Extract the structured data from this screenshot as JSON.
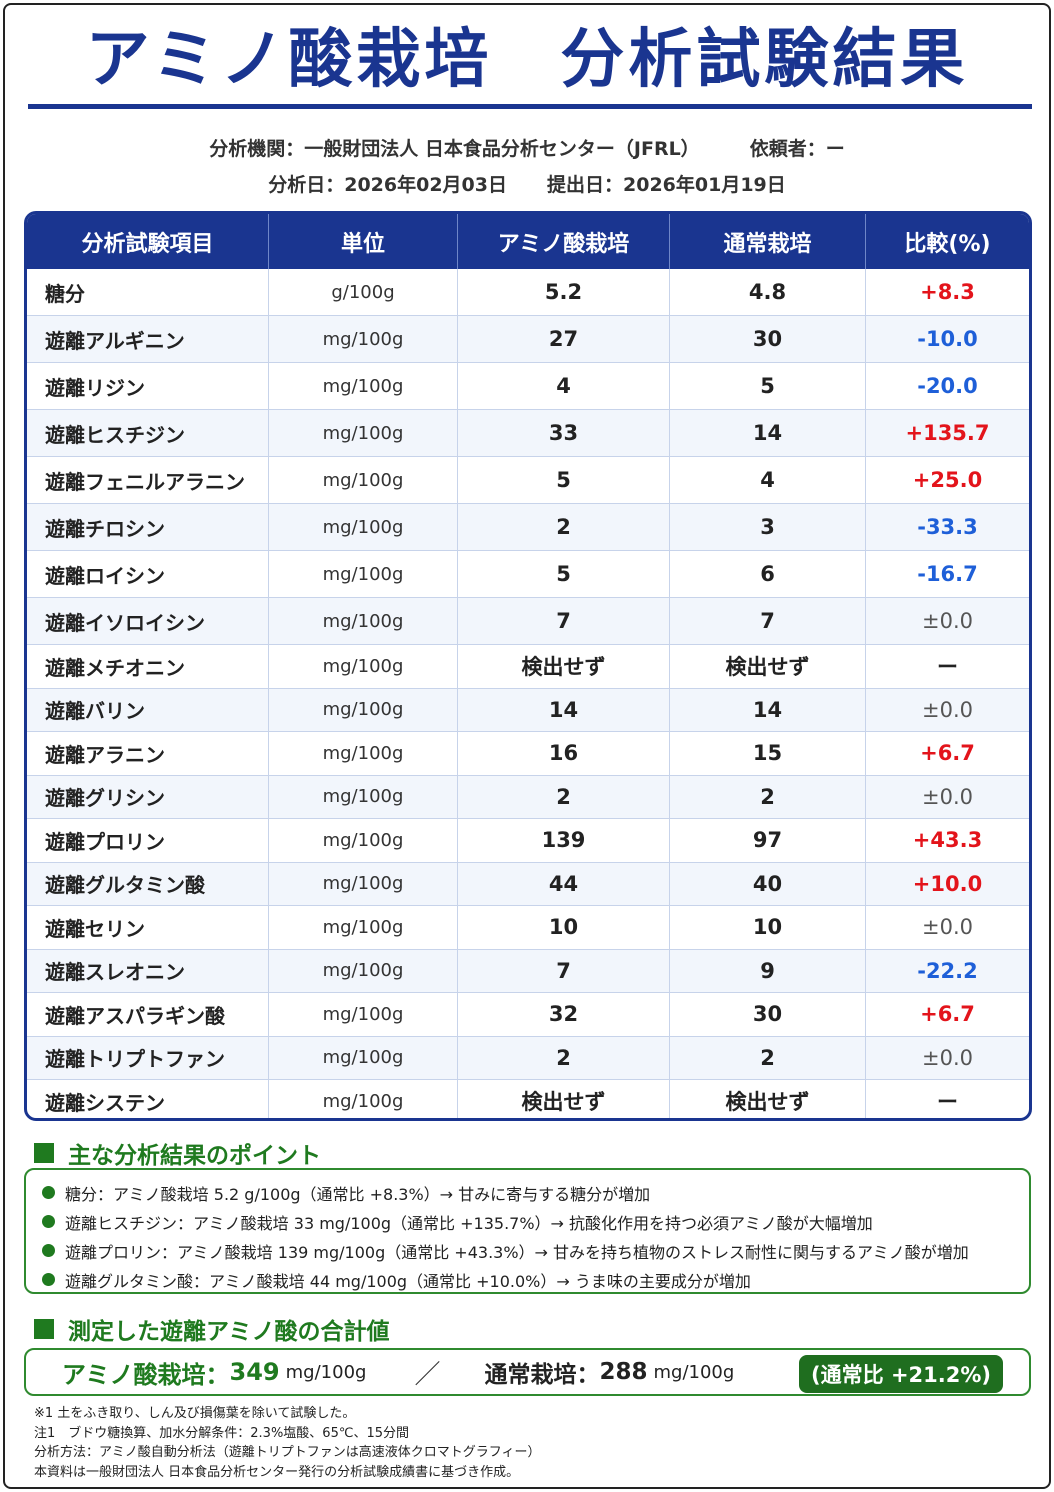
{
  "title": "アミノ酸栽培　分析試験結果",
  "meta": {
    "org": "分析機関：一般財団法人 日本食品分析センター（JFRL）",
    "requester": "依頼者：ー",
    "analysis_date": "分析日：2026年02月03日",
    "submit_date": "提出日：2026年01月19日"
  },
  "table": {
    "headers": [
      "分析試験項目",
      "単位",
      "アミノ酸栽培",
      "通常栽培",
      "比較(%)"
    ],
    "rows": [
      {
        "name": "糖分",
        "unit": "g/100g",
        "amino": "5.2",
        "normal": "4.8",
        "cmp": "+8.3",
        "tone": "pos"
      },
      {
        "name": "遊離アルギニン",
        "unit": "mg/100g",
        "amino": "27",
        "normal": "30",
        "cmp": "-10.0",
        "tone": "neg"
      },
      {
        "name": "遊離リジン",
        "unit": "mg/100g",
        "amino": "4",
        "normal": "5",
        "cmp": "-20.0",
        "tone": "neg"
      },
      {
        "name": "遊離ヒスチジン",
        "unit": "mg/100g",
        "amino": "33",
        "normal": "14",
        "cmp": "+135.7",
        "tone": "pos"
      },
      {
        "name": "遊離フェニルアラニン",
        "unit": "mg/100g",
        "amino": "5",
        "normal": "4",
        "cmp": "+25.0",
        "tone": "pos"
      },
      {
        "name": "遊離チロシン",
        "unit": "mg/100g",
        "amino": "2",
        "normal": "3",
        "cmp": "-33.3",
        "tone": "neg"
      },
      {
        "name": "遊離ロイシン",
        "unit": "mg/100g",
        "amino": "5",
        "normal": "6",
        "cmp": "-16.7",
        "tone": "neg"
      },
      {
        "name": "遊離イソロイシン",
        "unit": "mg/100g",
        "amino": "7",
        "normal": "7",
        "cmp": "±0.0",
        "tone": "zero"
      },
      {
        "name": "遊離メチオニン",
        "unit": "mg/100g",
        "amino": "検出せず",
        "normal": "検出せず",
        "cmp": "ー",
        "tone": "none"
      },
      {
        "name": "遊離バリン",
        "unit": "mg/100g",
        "amino": "14",
        "normal": "14",
        "cmp": "±0.0",
        "tone": "zero"
      },
      {
        "name": "遊離アラニン",
        "unit": "mg/100g",
        "amino": "16",
        "normal": "15",
        "cmp": "+6.7",
        "tone": "pos"
      },
      {
        "name": "遊離グリシン",
        "unit": "mg/100g",
        "amino": "2",
        "normal": "2",
        "cmp": "±0.0",
        "tone": "zero"
      },
      {
        "name": "遊離プロリン",
        "unit": "mg/100g",
        "amino": "139",
        "normal": "97",
        "cmp": "+43.3",
        "tone": "pos"
      },
      {
        "name": "遊離グルタミン酸",
        "unit": "mg/100g",
        "amino": "44",
        "normal": "40",
        "cmp": "+10.0",
        "tone": "pos"
      },
      {
        "name": "遊離セリン",
        "unit": "mg/100g",
        "amino": "10",
        "normal": "10",
        "cmp": "±0.0",
        "tone": "zero"
      },
      {
        "name": "遊離スレオニン",
        "unit": "mg/100g",
        "amino": "7",
        "normal": "9",
        "cmp": "-22.2",
        "tone": "neg"
      },
      {
        "name": "遊離アスパラギン酸",
        "unit": "mg/100g",
        "amino": "32",
        "normal": "30",
        "cmp": "+6.7",
        "tone": "pos"
      },
      {
        "name": "遊離トリプトファン",
        "unit": "mg/100g",
        "amino": "2",
        "normal": "2",
        "cmp": "±0.0",
        "tone": "zero"
      },
      {
        "name": "遊離システン",
        "unit": "mg/100g",
        "amino": "検出せず",
        "normal": "検出せず",
        "cmp": "ー",
        "tone": "none"
      }
    ]
  },
  "points": {
    "heading": "主な分析結果のポイント",
    "items": [
      "糖分：アミノ酸栽培 5.2 g/100g（通常比 +8.3%）→ 甘みに寄与する糖分が増加",
      "遊離ヒスチジン：アミノ酸栽培 33 mg/100g（通常比 +135.7%）→ 抗酸化作用を持つ必須アミノ酸が大幅増加",
      "遊離プロリン：アミノ酸栽培 139 mg/100g（通常比 +43.3%）→ 甘みを持ち植物のストレス耐性に関与するアミノ酸が増加",
      "遊離グルタミン酸：アミノ酸栽培 44 mg/100g（通常比 +10.0%）→ うま味の主要成分が増加"
    ]
  },
  "total": {
    "heading": "測定した遊離アミノ酸の合計値",
    "amino_label": "アミノ酸栽培：",
    "amino_value": "349",
    "unit": "mg/100g",
    "slash": "／",
    "normal_label": "通常栽培：",
    "normal_value": "288",
    "badge": "(通常比 +21.2%)"
  },
  "notes": [
    "※1 土をふき取り、しん及び損傷葉を除いて試験した。",
    "注1　ブドウ糖換算、加水分解条件：2.3%塩酸、65℃、15分間",
    "分析方法：アミノ酸自動分析法（遊離トリプトファンは高速液体クロマトグラフィー）",
    "本資料は一般財団法人 日本食品分析センター発行の分析試験成績書に基づき作成。"
  ],
  "colors": {
    "primary": "#1a3590",
    "positive": "#e3141b",
    "negative": "#1e5fd8",
    "section": "#1f7a1f"
  }
}
